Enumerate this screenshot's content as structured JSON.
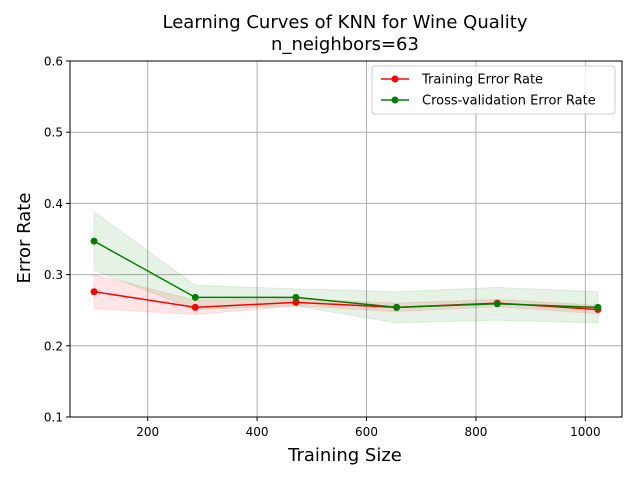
{
  "chart_data": {
    "type": "line",
    "title": "Learning Curves of KNN for Wine Quality",
    "subtitle": "n_neighbors=63",
    "xlabel": "Training Size",
    "ylabel": "Error Rate",
    "xlim": [
      58,
      1067
    ],
    "ylim": [
      0.1,
      0.6
    ],
    "xticks": [
      200,
      400,
      600,
      800,
      1000
    ],
    "yticks": [
      0.1,
      0.2,
      0.3,
      0.4,
      0.5,
      0.6
    ],
    "grid": true,
    "legend_position": "top-right",
    "x": [
      102,
      287,
      471,
      655,
      839,
      1023
    ],
    "series": [
      {
        "name": "Training Error Rate",
        "color": "#ff0000",
        "values": [
          0.276,
          0.254,
          0.261,
          0.254,
          0.26,
          0.251
        ],
        "band_low": [
          0.252,
          0.244,
          0.256,
          0.248,
          0.255,
          0.245
        ],
        "band_high": [
          0.3,
          0.264,
          0.266,
          0.26,
          0.265,
          0.257
        ]
      },
      {
        "name": "Cross-validation Error Rate",
        "color": "#008000",
        "values": [
          0.347,
          0.268,
          0.268,
          0.254,
          0.259,
          0.254
        ],
        "band_low": [
          0.306,
          0.251,
          0.256,
          0.232,
          0.236,
          0.232
        ],
        "band_high": [
          0.388,
          0.285,
          0.28,
          0.276,
          0.282,
          0.276
        ]
      }
    ]
  }
}
